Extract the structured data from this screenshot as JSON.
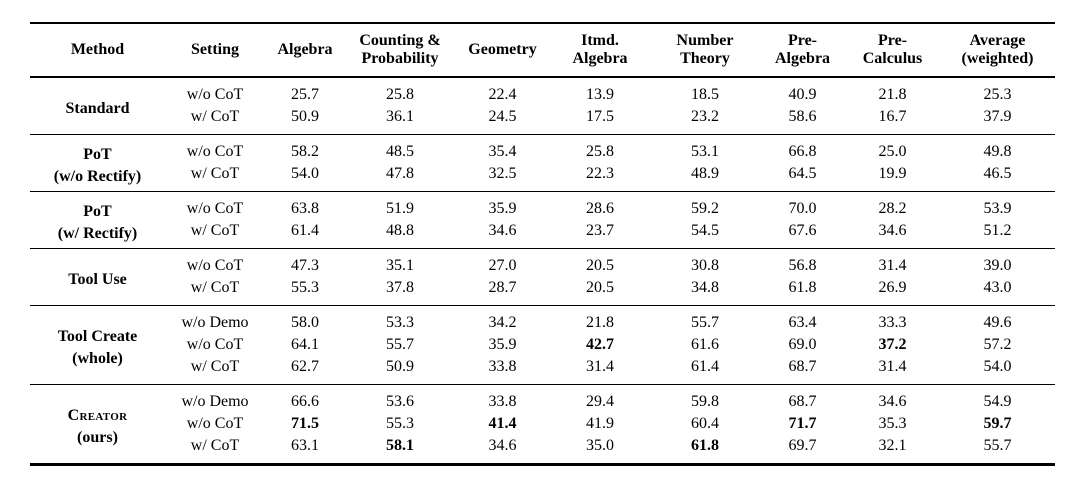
{
  "table": {
    "columns": [
      {
        "lines": [
          "Method"
        ]
      },
      {
        "lines": [
          "Setting"
        ]
      },
      {
        "lines": [
          "Algebra"
        ]
      },
      {
        "lines": [
          "Counting &",
          "Probability"
        ]
      },
      {
        "lines": [
          "Geometry"
        ]
      },
      {
        "lines": [
          "Itmd.",
          "Algebra"
        ]
      },
      {
        "lines": [
          "Number",
          "Theory"
        ]
      },
      {
        "lines": [
          "Pre-",
          "Algebra"
        ]
      },
      {
        "lines": [
          "Pre-",
          "Calculus"
        ]
      },
      {
        "lines": [
          "Average",
          "(weighted)"
        ]
      }
    ],
    "groups": [
      {
        "method_lines": [
          "Standard"
        ],
        "smallcaps": false,
        "rows": [
          {
            "setting": "w/o CoT",
            "values": [
              "25.7",
              "25.8",
              "22.4",
              "13.9",
              "18.5",
              "40.9",
              "21.8",
              "25.3"
            ],
            "bold": []
          },
          {
            "setting": "w/ CoT",
            "values": [
              "50.9",
              "36.1",
              "24.5",
              "17.5",
              "23.2",
              "58.6",
              "16.7",
              "37.9"
            ],
            "bold": []
          }
        ]
      },
      {
        "method_lines": [
          "PoT",
          "(w/o Rectify)"
        ],
        "smallcaps": false,
        "rows": [
          {
            "setting": "w/o CoT",
            "values": [
              "58.2",
              "48.5",
              "35.4",
              "25.8",
              "53.1",
              "66.8",
              "25.0",
              "49.8"
            ],
            "bold": []
          },
          {
            "setting": "w/ CoT",
            "values": [
              "54.0",
              "47.8",
              "32.5",
              "22.3",
              "48.9",
              "64.5",
              "19.9",
              "46.5"
            ],
            "bold": []
          }
        ]
      },
      {
        "method_lines": [
          "PoT",
          "(w/ Rectify)"
        ],
        "smallcaps": false,
        "rows": [
          {
            "setting": "w/o CoT",
            "values": [
              "63.8",
              "51.9",
              "35.9",
              "28.6",
              "59.2",
              "70.0",
              "28.2",
              "53.9"
            ],
            "bold": []
          },
          {
            "setting": "w/ CoT",
            "values": [
              "61.4",
              "48.8",
              "34.6",
              "23.7",
              "54.5",
              "67.6",
              "34.6",
              "51.2"
            ],
            "bold": []
          }
        ]
      },
      {
        "method_lines": [
          "Tool Use"
        ],
        "smallcaps": false,
        "rows": [
          {
            "setting": "w/o CoT",
            "values": [
              "47.3",
              "35.1",
              "27.0",
              "20.5",
              "30.8",
              "56.8",
              "31.4",
              "39.0"
            ],
            "bold": []
          },
          {
            "setting": "w/ CoT",
            "values": [
              "55.3",
              "37.8",
              "28.7",
              "20.5",
              "34.8",
              "61.8",
              "26.9",
              "43.0"
            ],
            "bold": []
          }
        ]
      },
      {
        "method_lines": [
          "Tool Create",
          "(whole)"
        ],
        "smallcaps": false,
        "rows": [
          {
            "setting": "w/o Demo",
            "values": [
              "58.0",
              "53.3",
              "34.2",
              "21.8",
              "55.7",
              "63.4",
              "33.3",
              "49.6"
            ],
            "bold": []
          },
          {
            "setting": "w/o CoT",
            "values": [
              "64.1",
              "55.7",
              "35.9",
              "42.7",
              "61.6",
              "69.0",
              "37.2",
              "57.2"
            ],
            "bold": [
              3,
              6
            ]
          },
          {
            "setting": "w/ CoT",
            "values": [
              "62.7",
              "50.9",
              "33.8",
              "31.4",
              "61.4",
              "68.7",
              "31.4",
              "54.0"
            ],
            "bold": []
          }
        ]
      },
      {
        "method_lines": [
          "Creator",
          "(ours)"
        ],
        "smallcaps": true,
        "rows": [
          {
            "setting": "w/o Demo",
            "values": [
              "66.6",
              "53.6",
              "33.8",
              "29.4",
              "59.8",
              "68.7",
              "34.6",
              "54.9"
            ],
            "bold": []
          },
          {
            "setting": "w/o CoT",
            "values": [
              "71.5",
              "55.3",
              "41.4",
              "41.9",
              "60.4",
              "71.7",
              "35.3",
              "59.7"
            ],
            "bold": [
              0,
              2,
              5,
              7
            ]
          },
          {
            "setting": "w/ CoT",
            "values": [
              "63.1",
              "58.1",
              "34.6",
              "35.0",
              "61.8",
              "69.7",
              "32.1",
              "55.7"
            ],
            "bold": [
              1,
              4
            ]
          }
        ]
      }
    ]
  }
}
